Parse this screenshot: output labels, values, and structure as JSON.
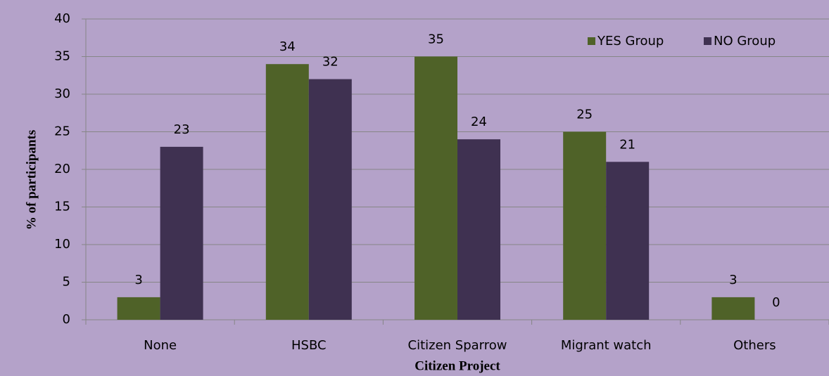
{
  "chart_data": {
    "type": "bar",
    "xlabel": "Citizen Project",
    "ylabel": "% of participants",
    "categories": [
      "None",
      "HSBC",
      "Citizen Sparrow",
      "Migrant watch",
      "Others"
    ],
    "series": [
      {
        "name": "YES Group",
        "color": "#4f6228",
        "values": [
          3,
          34,
          35,
          25,
          3
        ]
      },
      {
        "name": "NO Group",
        "color": "#3f3151",
        "values": [
          23,
          32,
          24,
          21,
          0
        ]
      }
    ],
    "ylim": [
      0,
      40
    ],
    "yticks": [
      0,
      5,
      10,
      15,
      20,
      25,
      30,
      35,
      40
    ],
    "grid": true,
    "legend": "upper right"
  }
}
